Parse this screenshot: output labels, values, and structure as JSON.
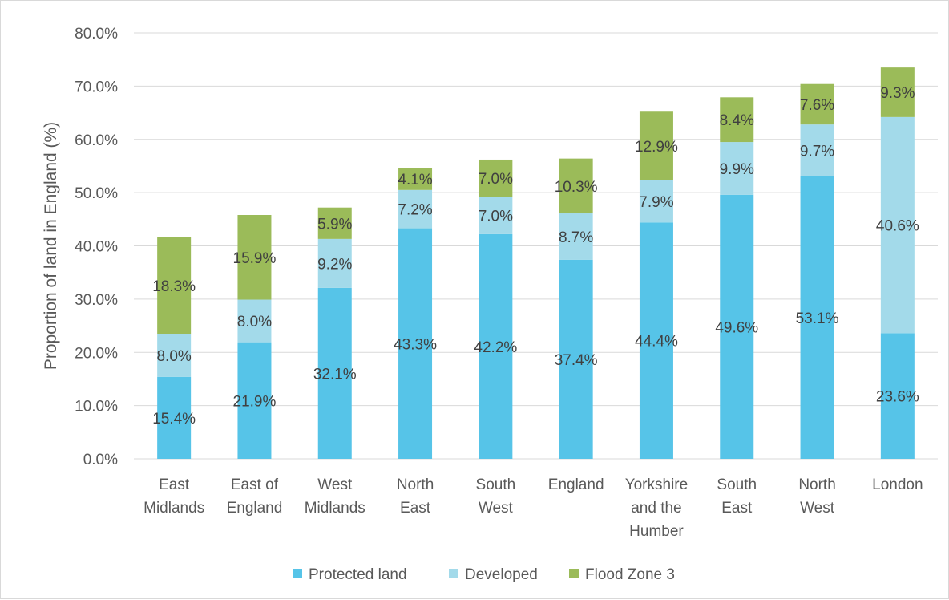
{
  "chart_data": {
    "type": "bar",
    "stacked": true,
    "ylabel": "Proportion of land in England (%)",
    "xlabel": "",
    "ylim": [
      0,
      80
    ],
    "yticks": [
      "0.0%",
      "10.0%",
      "20.0%",
      "30.0%",
      "40.0%",
      "50.0%",
      "60.0%",
      "70.0%",
      "80.0%"
    ],
    "grid": "horizontal",
    "legend_position": "bottom",
    "categories": [
      [
        "East",
        "Midlands"
      ],
      [
        "East of",
        "England"
      ],
      [
        "West",
        "Midlands"
      ],
      [
        "North",
        "East"
      ],
      [
        "South",
        "West"
      ],
      [
        "England"
      ],
      [
        "Yorkshire",
        "and the",
        "Humber"
      ],
      [
        "South",
        "East"
      ],
      [
        "North",
        "West"
      ],
      [
        "London"
      ]
    ],
    "series": [
      {
        "name": "Protected land",
        "color": "#56C4E8",
        "values": [
          15.4,
          21.9,
          32.1,
          43.3,
          42.2,
          37.4,
          44.4,
          49.6,
          53.1,
          23.6
        ]
      },
      {
        "name": "Developed",
        "color": "#A3DAEA",
        "values": [
          8.0,
          8.0,
          9.2,
          7.2,
          7.0,
          8.7,
          7.9,
          9.9,
          9.7,
          40.6
        ]
      },
      {
        "name": "Flood Zone 3",
        "color": "#9BBB59",
        "values": [
          18.3,
          15.9,
          5.9,
          4.1,
          7.0,
          10.3,
          12.9,
          8.4,
          7.6,
          9.3
        ]
      }
    ],
    "data_labels": [
      [
        "15.4%",
        "21.9%",
        "32.1%",
        "43.3%",
        "42.2%",
        "37.4%",
        "44.4%",
        "49.6%",
        "53.1%",
        "23.6%"
      ],
      [
        "8.0%",
        "8.0%",
        "9.2%",
        "7.2%",
        "7.0%",
        "8.7%",
        "7.9%",
        "9.9%",
        "9.7%",
        "40.6%"
      ],
      [
        "18.3%",
        "15.9%",
        "5.9%",
        "4.1%",
        "7.0%",
        "10.3%",
        "12.9%",
        "8.4%",
        "7.6%",
        "9.3%"
      ]
    ]
  }
}
